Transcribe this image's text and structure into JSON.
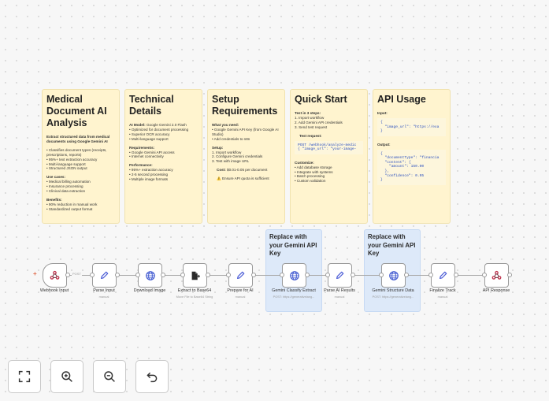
{
  "notes": {
    "medical": {
      "title": "Medical Document AI Analysis",
      "intro": "Extract structured data from medical documents using Google Gemini AI",
      "features": [
        "• Classifies document types (receipts, prescriptions, reports)",
        "• 95%+ text extraction accuracy",
        "• Multi-language support",
        "• Structured JSON output"
      ],
      "use_cases_title": "Use cases:",
      "use_cases": [
        "• Medical billing automation",
        "• Insurance processing",
        "• Clinical data extraction"
      ],
      "benefits_title": "Benefits:",
      "benefits": [
        "• 90% reduction in manual work",
        "• Standardized output format"
      ]
    },
    "technical": {
      "title": "Technical Details",
      "model_label": "AI Model:",
      "model_value": " Google Gemini 2.0 Flash",
      "model_points": [
        "• Optimized for document processing",
        "• Superior OCR accuracy",
        "• Multi-language support"
      ],
      "req_title": "Requirements:",
      "req_points": [
        "• Google Gemini API access",
        "• Internet connectivity"
      ],
      "perf_title": "Performance:",
      "perf_points": [
        "• 95%+ extraction accuracy",
        "• 2-5 second processing",
        "• Multiple image formats"
      ]
    },
    "setup": {
      "title": "Setup Requirements",
      "need_title": "What you need:",
      "need_points": [
        "• Google Gemini API Key (from Google AI Studio)",
        "• Add credentials to n8n"
      ],
      "setup_title": "Setup:",
      "setup_points": [
        "1. Import workflow",
        "2. Configure Gemini credentials",
        "3. Test with image URL"
      ],
      "cost_label": "Cost:",
      "cost_value": " $0.01-0.05 per document",
      "warning": "⚠️ Ensure API quota is sufficient"
    },
    "quickstart": {
      "title": "Quick Start",
      "steps_title": "Test in 3 steps:",
      "steps": [
        "1. Import workflow",
        "2. Add Gemini API credentials",
        "3. Send test request"
      ],
      "test_title": "Test request:",
      "test_code": "POST /webhook/analyze-medic\n{ \"image_url\": \"your-image-",
      "custom_title": "Customize:",
      "custom_points": [
        "• Add database storage",
        "• Integrate with systems",
        "• Batch processing",
        "• Custom validation"
      ]
    },
    "api": {
      "title": "API Usage",
      "input_title": "Input:",
      "input_code": "{\n  \"image_url\": \"https://exa\n}",
      "output_title": "Output:",
      "output_code": "{\n  \"documentType\": \"financia\n  \"content\": {\n    \"amount\": 150.00\n  },\n  \"confidence\": 0.95\n}"
    }
  },
  "stickies": {
    "classify": "Replace with your Gemini API Key",
    "structure": "Replace with your Gemini API Key"
  },
  "connection_label": "POST",
  "nodes": [
    {
      "label": "Webhook Input",
      "sub": "",
      "icon": "webhook-icon"
    },
    {
      "label": "Parse Input",
      "sub": "manual",
      "icon": "pencil-icon"
    },
    {
      "label": "Download Image",
      "sub": "",
      "icon": "globe-icon"
    },
    {
      "label": "Extract to Base64",
      "sub": "Move File to Base64 String",
      "icon": "file-export-icon"
    },
    {
      "label": "Prepare for AI",
      "sub": "manual",
      "icon": "pencil-icon"
    },
    {
      "label": "Gemini Classify Extract",
      "sub": "POST: https://generativelang...",
      "icon": "globe-icon"
    },
    {
      "label": "Parse AI Results",
      "sub": "manual",
      "icon": "pencil-icon"
    },
    {
      "label": "Gemini Structure Data",
      "sub": "POST: https://generativelang...",
      "icon": "globe-icon"
    },
    {
      "label": "Finalize Track",
      "sub": "manual",
      "icon": "pencil-icon"
    },
    {
      "label": "API Response",
      "sub": "",
      "icon": "webhook-icon"
    }
  ],
  "controls": [
    "fit-view-icon",
    "zoom-in-icon",
    "zoom-out-icon",
    "undo-icon"
  ]
}
